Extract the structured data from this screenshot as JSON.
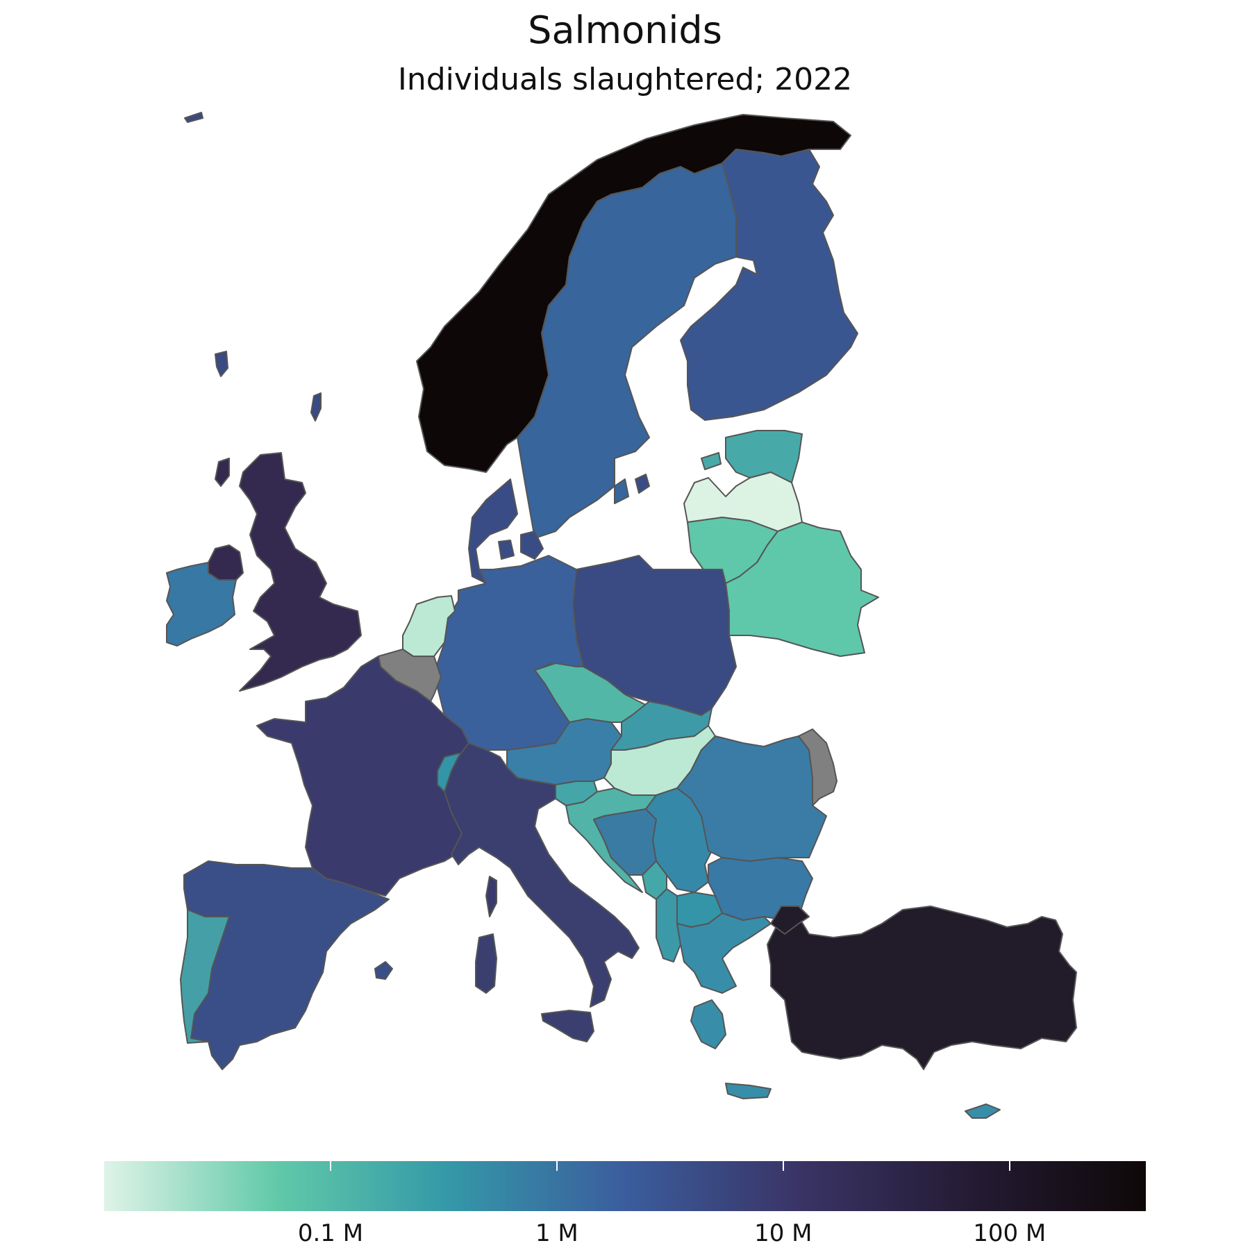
{
  "title": "Salmonids",
  "subtitle": "Individuals slaughtered; 2022",
  "legend": {
    "type": "continuous",
    "scale": "log",
    "range": [
      0.01,
      400
    ],
    "unit_suffix": "M",
    "colors": [
      "#dff3e8",
      "#60c9a8",
      "#3497a8",
      "#3b5d9d",
      "#3a3466",
      "#241b33",
      "#0e0808"
    ],
    "ticks": [
      {
        "value": 0.1,
        "label": "0.1 M"
      },
      {
        "value": 1,
        "label": "1 M"
      },
      {
        "value": 10,
        "label": "10 M"
      },
      {
        "value": 100,
        "label": "100 M"
      }
    ]
  },
  "no_data_color": "#808080",
  "regions": [
    {
      "name": "Norway",
      "fill": "#0d0707"
    },
    {
      "name": "Sweden",
      "fill": "#37659c"
    },
    {
      "name": "Finland",
      "fill": "#3a5690"
    },
    {
      "name": "Estonia",
      "fill": "#48aaa8"
    },
    {
      "name": "Latvia",
      "fill": "#dcf3e4"
    },
    {
      "name": "Lithuania",
      "fill": "#5fc7aa"
    },
    {
      "name": "Belarus",
      "fill": "#5fc7aa"
    },
    {
      "name": "Poland",
      "fill": "#3a4a82"
    },
    {
      "name": "Germany",
      "fill": "#3b619c"
    },
    {
      "name": "Denmark",
      "fill": "#394c86"
    },
    {
      "name": "Netherlands",
      "fill": "#bce9d4"
    },
    {
      "name": "Belgium",
      "fill": "#808080"
    },
    {
      "name": "United Kingdom",
      "fill": "#342a4f"
    },
    {
      "name": "Ireland",
      "fill": "#3878a4"
    },
    {
      "name": "France",
      "fill": "#3b3a6c"
    },
    {
      "name": "Spain",
      "fill": "#3a4f88"
    },
    {
      "name": "Portugal",
      "fill": "#44a0a6"
    },
    {
      "name": "Switzerland",
      "fill": "#3295a8"
    },
    {
      "name": "Italy",
      "fill": "#3a3f70"
    },
    {
      "name": "Austria",
      "fill": "#3a7fa8"
    },
    {
      "name": "Czechia",
      "fill": "#53b7a8"
    },
    {
      "name": "Slovakia",
      "fill": "#3f9aa8"
    },
    {
      "name": "Hungary",
      "fill": "#bce9d4"
    },
    {
      "name": "Slovenia",
      "fill": "#44a6a8"
    },
    {
      "name": "Croatia",
      "fill": "#52b3a8"
    },
    {
      "name": "Bosnia and Herzegovina",
      "fill": "#3a7ba4"
    },
    {
      "name": "Serbia",
      "fill": "#3688a8"
    },
    {
      "name": "Montenegro",
      "fill": "#44a8a8"
    },
    {
      "name": "North Macedonia",
      "fill": "#3495a8"
    },
    {
      "name": "Albania",
      "fill": "#3c99a8"
    },
    {
      "name": "Greece",
      "fill": "#388ea8"
    },
    {
      "name": "Bulgaria",
      "fill": "#3879a6"
    },
    {
      "name": "Romania",
      "fill": "#3a7ca6"
    },
    {
      "name": "Moldova",
      "fill": "#808080"
    },
    {
      "name": "Turkey",
      "fill": "#221b29"
    },
    {
      "name": "Cyprus",
      "fill": "#388ea8"
    },
    {
      "name": "Iceland",
      "fill": "#3a4a82"
    },
    {
      "name": "Faroe Islands",
      "fill": "#3a4a82"
    },
    {
      "name": "Northern Ireland",
      "fill": "#342a4f"
    }
  ]
}
